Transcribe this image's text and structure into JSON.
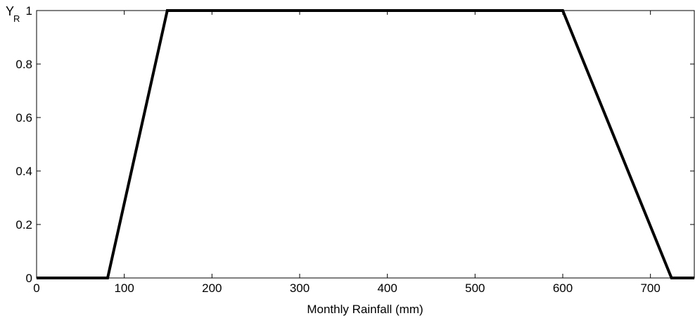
{
  "chart_data": {
    "type": "line",
    "title": "",
    "xlabel": "Monthly Rainfall (mm)",
    "ylabel_main": "Y",
    "ylabel_sub": "R",
    "xlim": [
      0,
      750
    ],
    "ylim": [
      0,
      1
    ],
    "xticks": [
      0,
      100,
      200,
      300,
      400,
      500,
      600,
      700
    ],
    "xtick_labels": [
      "0",
      "100",
      "200",
      "300",
      "400",
      "500",
      "600",
      "700"
    ],
    "yticks": [
      0,
      0.2,
      0.4,
      0.6,
      0.8,
      1
    ],
    "ytick_labels": [
      "0",
      "0.2",
      "0.4",
      "0.6",
      "0.8",
      "1"
    ],
    "grid": false,
    "series": [
      {
        "color": "#000000",
        "x": [
          0,
          81,
          149,
          600,
          724,
          750
        ],
        "y": [
          0,
          0,
          1,
          1,
          0,
          0
        ]
      }
    ]
  }
}
